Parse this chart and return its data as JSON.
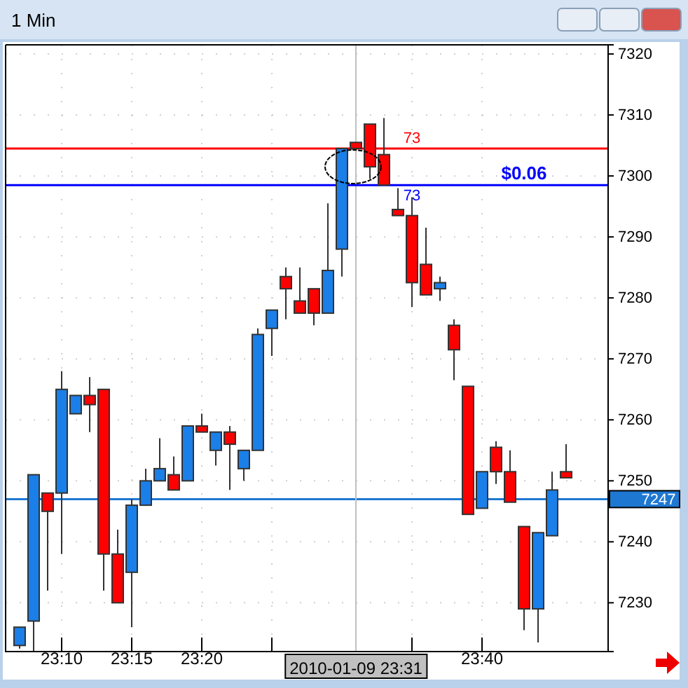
{
  "chart_data": {
    "type": "candlestick",
    "title": "1 Min",
    "x": [
      "2010-01-09T23:07",
      "2010-01-09T23:08",
      "2010-01-09T23:09",
      "2010-01-09T23:10",
      "2010-01-09T23:11",
      "2010-01-09T23:12",
      "2010-01-09T23:13",
      "2010-01-09T23:14",
      "2010-01-09T23:15",
      "2010-01-09T23:16",
      "2010-01-09T23:17",
      "2010-01-09T23:18",
      "2010-01-09T23:19",
      "2010-01-09T23:20",
      "2010-01-09T23:21",
      "2010-01-09T23:22",
      "2010-01-09T23:23",
      "2010-01-09T23:24",
      "2010-01-09T23:25",
      "2010-01-09T23:26",
      "2010-01-09T23:27",
      "2010-01-09T23:28",
      "2010-01-09T23:29",
      "2010-01-09T23:30",
      "2010-01-09T23:31",
      "2010-01-09T23:32",
      "2010-01-09T23:33",
      "2010-01-09T23:34",
      "2010-01-09T23:35",
      "2010-01-09T23:36",
      "2010-01-09T23:37",
      "2010-01-09T23:38",
      "2010-01-09T23:39",
      "2010-01-09T23:40",
      "2010-01-09T23:41",
      "2010-01-09T23:42",
      "2010-01-09T23:43",
      "2010-01-09T23:44",
      "2010-01-09T23:45",
      "2010-01-09T23:46"
    ],
    "ohlc": [
      [
        7223,
        7226,
        7222.5,
        7226
      ],
      [
        7227,
        7251,
        7222,
        7251
      ],
      [
        7248,
        7248,
        7232,
        7245
      ],
      [
        7248,
        7268,
        7238,
        7265
      ],
      [
        7261,
        7264,
        7261,
        7264
      ],
      [
        7264,
        7267,
        7258,
        7262.5
      ],
      [
        7265,
        7265,
        7232,
        7238
      ],
      [
        7238,
        7242,
        7230,
        7230
      ],
      [
        7235,
        7247,
        7226,
        7246
      ],
      [
        7246,
        7252,
        7246,
        7250
      ],
      [
        7250,
        7257,
        7250,
        7252
      ],
      [
        7251,
        7254,
        7248.5,
        7248.5
      ],
      [
        7250,
        7259,
        7250,
        7259
      ],
      [
        7259,
        7261,
        7258,
        7258
      ],
      [
        7255,
        7258,
        7252.5,
        7258
      ],
      [
        7258,
        7259,
        7248.5,
        7256
      ],
      [
        7252,
        7255,
        7250,
        7255
      ],
      [
        7255,
        7275,
        7255,
        7274
      ],
      [
        7275,
        7278,
        7270.5,
        7278
      ],
      [
        7283.5,
        7285,
        7276.5,
        7281.5
      ],
      [
        7279.5,
        7285,
        7277.5,
        7277.5
      ],
      [
        7281.5,
        7281.5,
        7275.5,
        7277.5
      ],
      [
        7277.5,
        7295.5,
        7277.5,
        7284.5
      ],
      [
        7288,
        7304.5,
        7283.5,
        7304.5
      ],
      [
        7305.5,
        7305.5,
        7304.5,
        7304.5
      ],
      [
        7308.5,
        7308.5,
        7299.5,
        7301.5
      ],
      [
        7303.5,
        7309.5,
        7298.5,
        7298.5
      ],
      [
        7294.5,
        7298,
        7293.5,
        7293.5
      ],
      [
        7293.5,
        7296.5,
        7278.5,
        7282.5
      ],
      [
        7285.5,
        7291.5,
        7280.5,
        7280.5
      ],
      [
        7281.5,
        7283.5,
        7279.5,
        7282.5
      ],
      [
        7275.5,
        7276.5,
        7266.5,
        7271.5
      ],
      [
        7265.5,
        7265.5,
        7244.5,
        7244.5
      ],
      [
        7245.5,
        7251.5,
        7245.5,
        7251.5
      ],
      [
        7255.5,
        7256.5,
        7249.5,
        7251.5
      ],
      [
        7251.5,
        7255,
        7246.5,
        7246.5
      ],
      [
        7242.5,
        7242.5,
        7225.5,
        7229
      ],
      [
        7229,
        7241.5,
        7223.5,
        7241.5
      ],
      [
        7241,
        7251.5,
        7241,
        7248.5
      ],
      [
        7251.5,
        7256,
        7250.5,
        7250.5
      ]
    ],
    "colors": [
      "#1a7fe8",
      "#1a7fe8",
      "#ff0000",
      "#1a7fe8",
      "#1a7fe8",
      "#ff0000",
      "#ff0000",
      "#ff0000",
      "#1a7fe8",
      "#1a7fe8",
      "#1a7fe8",
      "#ff0000",
      "#1a7fe8",
      "#ff0000",
      "#1a7fe8",
      "#ff0000",
      "#1a7fe8",
      "#1a7fe8",
      "#1a7fe8",
      "#ff0000",
      "#ff0000",
      "#ff0000",
      "#1a7fe8",
      "#1a7fe8",
      "#ff0000",
      "#ff0000",
      "#ff0000",
      "#ff0000",
      "#ff0000",
      "#ff0000",
      "#1a7fe8",
      "#ff0000",
      "#ff0000",
      "#1a7fe8",
      "#ff0000",
      "#ff0000",
      "#ff0000",
      "#1a7fe8",
      "#1a7fe8",
      "#ff0000"
    ],
    "xlim": [
      "2010-01-09T23:06",
      "2010-01-09T23:49"
    ],
    "xticks": [
      {
        "value": "2010-01-09T23:10",
        "label": "23:10"
      },
      {
        "value": "2010-01-09T23:15",
        "label": "23:15"
      },
      {
        "value": "2010-01-09T23:20",
        "label": "23:20"
      },
      {
        "value": "2010-01-09T23:25",
        "label": null
      },
      {
        "value": "2010-01-09T23:35",
        "label": null
      },
      {
        "value": "2010-01-09T23:40",
        "label": "23:40"
      }
    ],
    "ylim": [
      7222,
      7321.5
    ],
    "yticks": [
      7230,
      7240,
      7250,
      7260,
      7270,
      7280,
      7290,
      7300,
      7310,
      7320
    ],
    "grid": true,
    "ref_lines": [
      {
        "axis": "y",
        "value": 7247,
        "label": "7247",
        "color": "#1e78d2"
      },
      {
        "axis": "x",
        "value": "2010-01-09T23:31",
        "label": "2010-01-09 23:31",
        "color": "#c0c0c0"
      },
      {
        "axis": "y",
        "value": 7304.5,
        "color": "#ff0000"
      },
      {
        "axis": "y",
        "value": 7298.5,
        "color": "#0000ff"
      }
    ],
    "annotations": [
      {
        "text": "$0.06",
        "x": "2010-01-09T23:43",
        "y": 7298.5
      },
      {
        "text": "73",
        "x": "2010-01-09T23:35",
        "y": 7304.5
      },
      {
        "text": "73",
        "x": "2010-01-09T23:35",
        "y": 7298.5
      }
    ]
  }
}
